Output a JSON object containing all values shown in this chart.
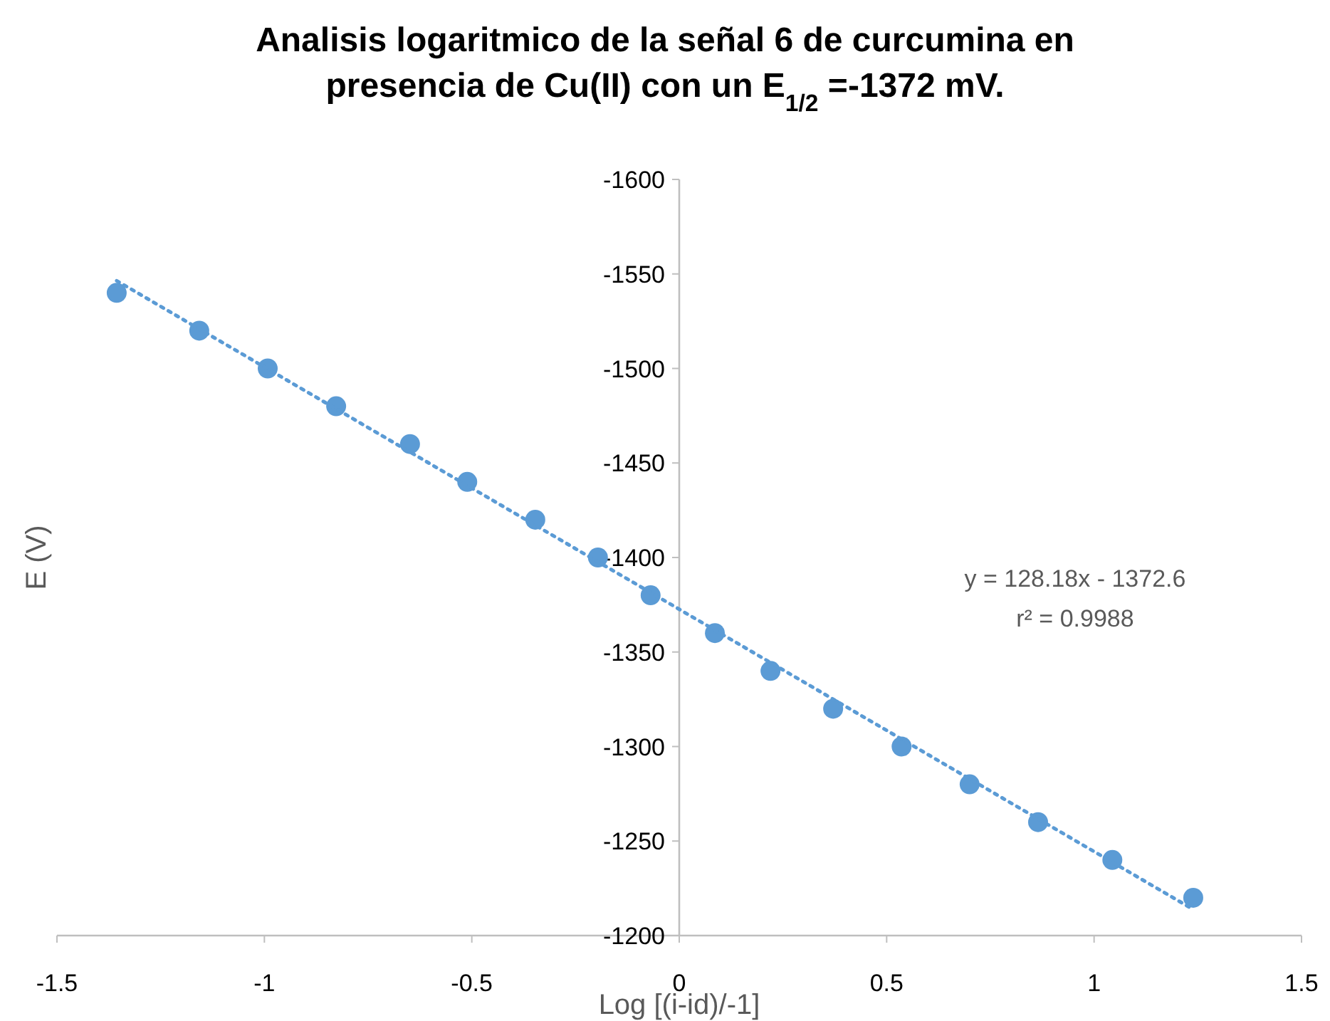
{
  "chart_data": {
    "type": "scatter",
    "title": "Analisis logaritmico de la señal 6 de curcumina en presencia de Cu(II) con un E$_{1/2}$ =-1372 mV.",
    "xlabel": "Log [(i-id)/-1]",
    "ylabel": "E (V)",
    "xlim": [
      -1.5,
      1.5
    ],
    "xticks": [
      -1.5,
      -1,
      -0.5,
      0,
      0.5,
      1,
      1.5
    ],
    "ylim": [
      -1200,
      -1600
    ],
    "yticks": [
      -1200,
      -1250,
      -1300,
      -1350,
      -1400,
      -1450,
      -1500,
      -1550,
      -1600
    ],
    "grid": false,
    "marker": "circle",
    "series": [
      {
        "color": "#5b9bd5",
        "x": [
          -1.356,
          -1.157,
          -0.992,
          -0.827,
          -0.649,
          -0.511,
          -0.347,
          -0.196,
          -0.069,
          0.086,
          0.22,
          0.371,
          0.536,
          0.7,
          0.865,
          1.044,
          1.239
        ],
        "values": [
          -1540,
          -1520,
          -1500,
          -1480,
          -1460,
          -1440,
          -1420,
          -1400,
          -1380,
          -1360,
          -1340,
          -1320,
          -1300,
          -1280,
          -1260,
          -1240,
          -1220
        ]
      },
      {
        "type": "line",
        "color": "#5b9bd5",
        "line_style": "dotted",
        "marker": "none",
        "x": [
          -1.356,
          1.239
        ],
        "values": [
          -1546.4,
          -1213.8
        ]
      }
    ],
    "annotations": [
      "y = 128.18x - 1372.6",
      "r² = 0.9988"
    ]
  }
}
